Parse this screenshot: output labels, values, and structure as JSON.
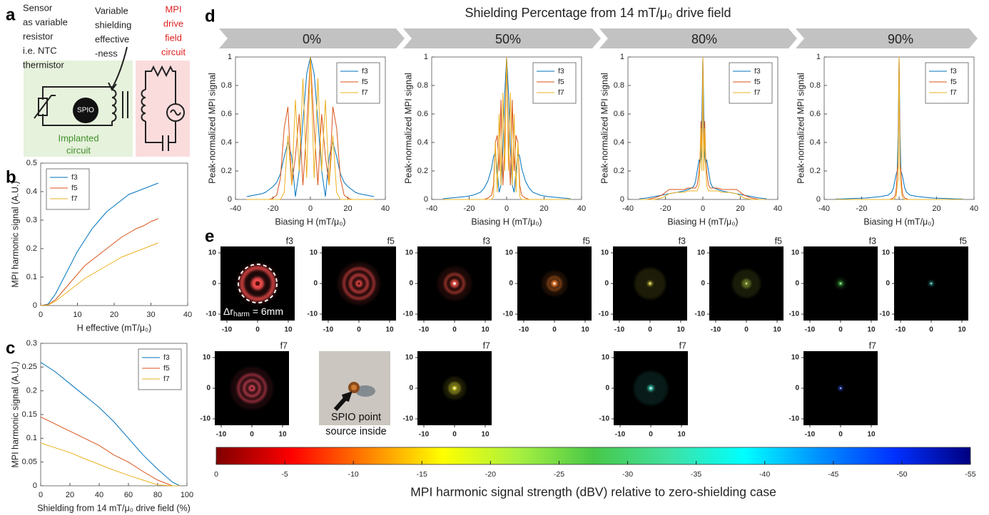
{
  "panel_labels": [
    "a",
    "b",
    "c",
    "d",
    "e"
  ],
  "diagram": {
    "sensor_label": [
      "Sensor",
      "as variable",
      "resistor",
      "i.e. NTC",
      "thermistor"
    ],
    "shielding_label": [
      "Variable",
      "shielding",
      "effective",
      "-ness"
    ],
    "drive_label": [
      "MPI",
      "drive",
      "field",
      "circuit"
    ],
    "spio": "SPIO",
    "implanted_label": [
      "Implanted",
      "circuit"
    ]
  },
  "figure_title": "Shielding Percentage from 14 mT/μ₀ drive field",
  "chart_data": [
    {
      "type": "line",
      "xlabel": "H effective (mT/μ₀)",
      "ylabel": "MPI harmonic signal (A.U.)",
      "x": [
        0,
        2,
        4,
        6,
        8,
        10,
        12,
        14,
        16,
        18,
        20,
        22,
        24,
        26,
        28,
        30,
        32
      ],
      "series": [
        {
          "name": "f3",
          "color": "#0072bd",
          "values": [
            0,
            0.005,
            0.04,
            0.09,
            0.14,
            0.19,
            0.23,
            0.27,
            0.3,
            0.33,
            0.35,
            0.37,
            0.39,
            0.4,
            0.41,
            0.42,
            0.43
          ]
        },
        {
          "name": "f5",
          "color": "#d95319",
          "values": [
            0,
            0.003,
            0.02,
            0.05,
            0.08,
            0.11,
            0.14,
            0.16,
            0.18,
            0.2,
            0.22,
            0.24,
            0.255,
            0.27,
            0.28,
            0.295,
            0.305
          ]
        },
        {
          "name": "f7",
          "color": "#edb120",
          "values": [
            0,
            0.002,
            0.015,
            0.035,
            0.055,
            0.075,
            0.095,
            0.11,
            0.125,
            0.14,
            0.155,
            0.17,
            0.18,
            0.19,
            0.2,
            0.21,
            0.22
          ]
        }
      ],
      "xlim": [
        0,
        40
      ],
      "ylim": [
        0,
        0.5
      ],
      "xticks": [
        0,
        10,
        20,
        30,
        40
      ],
      "yticks": [
        0,
        0.1,
        0.2,
        0.3,
        0.4,
        0.5
      ],
      "legend": "upper left"
    },
    {
      "type": "line",
      "xlabel": "Shielding from 14 mT/μ₀ drive field (%)",
      "ylabel": "MPI harmonic signal (A.U.)",
      "x": [
        0,
        10,
        20,
        30,
        40,
        50,
        60,
        70,
        80,
        90,
        95
      ],
      "series": [
        {
          "name": "f3",
          "color": "#0072bd",
          "values": [
            0.26,
            0.24,
            0.215,
            0.19,
            0.165,
            0.135,
            0.1,
            0.065,
            0.035,
            0.008,
            0
          ]
        },
        {
          "name": "f5",
          "color": "#d95319",
          "values": [
            0.145,
            0.13,
            0.115,
            0.1,
            0.085,
            0.065,
            0.05,
            0.03,
            0.012,
            0,
            0
          ]
        },
        {
          "name": "f7",
          "color": "#edb120",
          "values": [
            0.09,
            0.08,
            0.07,
            0.057,
            0.045,
            0.033,
            0.022,
            0.012,
            0.002,
            0,
            0
          ]
        }
      ],
      "xlim": [
        0,
        100
      ],
      "ylim": [
        0,
        0.3
      ],
      "xticks": [
        0,
        20,
        40,
        60,
        80,
        100
      ],
      "yticks": [
        0,
        0.05,
        0.1,
        0.15,
        0.2,
        0.25,
        0.3
      ],
      "legend": "upper right"
    },
    {
      "type": "line",
      "title": "0%",
      "xlabel": "Biasing H (mT/μ₀)",
      "ylabel": "Peak-normalized MPI signal",
      "x": [
        -34,
        -32,
        -30,
        -28,
        -26,
        -24,
        -22,
        -20,
        -18,
        -16,
        -14,
        -12,
        -10,
        -8,
        -6,
        -4,
        -2,
        0,
        2,
        4,
        6,
        8,
        10,
        12,
        14,
        16,
        18,
        20,
        22,
        24,
        26,
        28,
        30,
        32,
        34
      ],
      "series": [
        {
          "name": "f3",
          "color": "#0072bd",
          "values": [
            0.02,
            0.025,
            0.03,
            0.035,
            0.04,
            0.05,
            0.07,
            0.09,
            0.12,
            0.18,
            0.3,
            0.4,
            0.3,
            0.02,
            0.2,
            0.55,
            0.88,
            1,
            0.88,
            0.55,
            0.2,
            0.02,
            0.3,
            0.4,
            0.3,
            0.18,
            0.12,
            0.09,
            0.07,
            0.05,
            0.04,
            0.035,
            0.03,
            0.025,
            0.02
          ]
        },
        {
          "name": "f5",
          "color": "#d95319",
          "values": [
            0,
            0,
            0,
            0,
            0,
            0,
            0,
            0.01,
            0.03,
            0.15,
            0.5,
            0.65,
            0.1,
            0.3,
            0.6,
            0.1,
            0.5,
            1,
            0.5,
            0.1,
            0.6,
            0.3,
            0.1,
            0.65,
            0.5,
            0.15,
            0.03,
            0.01,
            0,
            0,
            0,
            0,
            0,
            0,
            0
          ]
        },
        {
          "name": "f7",
          "color": "#edb120",
          "values": [
            0,
            0,
            0,
            0,
            0,
            0,
            0,
            0,
            0,
            0,
            0.05,
            0.45,
            0.1,
            0.7,
            0.2,
            0.85,
            0.15,
            1,
            0.15,
            0.85,
            0.2,
            0.7,
            0.1,
            0.45,
            0.05,
            0,
            0,
            0,
            0,
            0,
            0,
            0,
            0,
            0,
            0
          ]
        }
      ],
      "xlim": [
        -40,
        40
      ],
      "ylim": [
        0,
        1
      ],
      "xticks": [
        -40,
        -20,
        0,
        20,
        40
      ],
      "yticks": [
        0,
        0.2,
        0.4,
        0.6,
        0.8,
        1
      ],
      "legend": "upper right"
    },
    {
      "type": "line",
      "title": "50%",
      "xlabel": "Biasing H (mT/μ₀)",
      "ylabel": "Peak-normalized MPI signal",
      "x": [
        -34,
        -30,
        -26,
        -22,
        -18,
        -14,
        -12,
        -10,
        -8,
        -7,
        -6,
        -5,
        -4,
        -3,
        -2,
        -1,
        0,
        1,
        2,
        3,
        4,
        5,
        6,
        7,
        8,
        10,
        12,
        14,
        18,
        22,
        26,
        30,
        34
      ],
      "series": [
        {
          "name": "f3",
          "color": "#0072bd",
          "values": [
            0.005,
            0.01,
            0.015,
            0.02,
            0.03,
            0.05,
            0.08,
            0.13,
            0.22,
            0.3,
            0.33,
            0.2,
            0.05,
            0.1,
            0.35,
            0.75,
            1,
            0.75,
            0.35,
            0.1,
            0.05,
            0.2,
            0.33,
            0.3,
            0.22,
            0.13,
            0.08,
            0.05,
            0.03,
            0.02,
            0.015,
            0.01,
            0.005
          ]
        },
        {
          "name": "f5",
          "color": "#d95319",
          "values": [
            0,
            0,
            0,
            0,
            0,
            0,
            0,
            0.01,
            0.03,
            0.1,
            0.4,
            0.45,
            0.2,
            0.7,
            0.1,
            0.4,
            1,
            0.4,
            0.1,
            0.7,
            0.2,
            0.45,
            0.4,
            0.1,
            0.03,
            0.01,
            0,
            0,
            0,
            0,
            0,
            0,
            0
          ]
        },
        {
          "name": "f7",
          "color": "#edb120",
          "values": [
            0,
            0,
            0,
            0,
            0,
            0,
            0,
            0,
            0,
            0.02,
            0.4,
            0.05,
            0.6,
            0.1,
            0.75,
            0.2,
            1,
            0.2,
            0.75,
            0.1,
            0.6,
            0.05,
            0.4,
            0.02,
            0,
            0,
            0,
            0,
            0,
            0,
            0,
            0,
            0
          ]
        }
      ],
      "xlim": [
        -40,
        40
      ],
      "ylim": [
        0,
        1
      ],
      "xticks": [
        -40,
        -20,
        0,
        20,
        40
      ],
      "yticks": [
        0,
        0.2,
        0.4,
        0.6,
        0.8,
        1
      ],
      "legend": "upper right"
    },
    {
      "type": "line",
      "title": "80%",
      "xlabel": "Biasing H (mT/μ₀)",
      "ylabel": "Peak-normalized MPI signal",
      "x": [
        -34,
        -30,
        -26,
        -22,
        -18,
        -14,
        -10,
        -8,
        -6,
        -5,
        -4,
        -3,
        -2,
        -1.5,
        -1,
        -0.5,
        0,
        0.5,
        1,
        1.5,
        2,
        3,
        4,
        5,
        6,
        8,
        10,
        14,
        18,
        22,
        26,
        30,
        34
      ],
      "series": [
        {
          "name": "f3",
          "color": "#0072bd",
          "values": [
            0.005,
            0.01,
            0.02,
            0.03,
            0.04,
            0.05,
            0.06,
            0.07,
            0.08,
            0.09,
            0.12,
            0.2,
            0.28,
            0.25,
            0.3,
            0.6,
            1,
            0.6,
            0.3,
            0.25,
            0.28,
            0.2,
            0.12,
            0.09,
            0.08,
            0.07,
            0.06,
            0.05,
            0.04,
            0.03,
            0.02,
            0.01,
            0.005
          ]
        },
        {
          "name": "f5",
          "color": "#d95319",
          "values": [
            0,
            0,
            0.01,
            0.03,
            0.07,
            0.07,
            0.07,
            0.08,
            0.08,
            0.08,
            0.08,
            0.1,
            0.2,
            0.3,
            0.55,
            0.3,
            1,
            0.3,
            0.55,
            0.3,
            0.2,
            0.1,
            0.08,
            0.08,
            0.08,
            0.08,
            0.07,
            0.07,
            0.07,
            0.03,
            0.01,
            0,
            0
          ]
        },
        {
          "name": "f7",
          "color": "#edb120",
          "values": [
            0,
            0,
            0,
            0.01,
            0.04,
            0.05,
            0.05,
            0.06,
            0.06,
            0.06,
            0.06,
            0.06,
            0.1,
            0.25,
            0.5,
            0.2,
            1,
            0.2,
            0.5,
            0.25,
            0.1,
            0.06,
            0.06,
            0.06,
            0.06,
            0.06,
            0.05,
            0.05,
            0.04,
            0.01,
            0,
            0,
            0
          ]
        }
      ],
      "xlim": [
        -40,
        40
      ],
      "ylim": [
        0,
        1
      ],
      "xticks": [
        -40,
        -20,
        0,
        20,
        40
      ],
      "yticks": [
        0,
        0.2,
        0.4,
        0.6,
        0.8,
        1
      ],
      "legend": "upper right"
    },
    {
      "type": "line",
      "title": "90%",
      "xlabel": "Biasing H (mT/μ₀)",
      "ylabel": "Peak-normalized MPI signal",
      "x": [
        -34,
        -30,
        -26,
        -22,
        -18,
        -14,
        -10,
        -8,
        -6,
        -5,
        -4,
        -3,
        -2,
        -1.5,
        -1,
        -0.5,
        0,
        0.5,
        1,
        1.5,
        2,
        3,
        4,
        5,
        6,
        8,
        10,
        14,
        18,
        22,
        26,
        30,
        34
      ],
      "series": [
        {
          "name": "f3",
          "color": "#0072bd",
          "values": [
            0.003,
            0.004,
            0.006,
            0.008,
            0.01,
            0.015,
            0.02,
            0.025,
            0.03,
            0.04,
            0.05,
            0.08,
            0.15,
            0.18,
            0.2,
            0.45,
            1,
            0.45,
            0.2,
            0.18,
            0.15,
            0.08,
            0.05,
            0.04,
            0.03,
            0.025,
            0.02,
            0.015,
            0.01,
            0.008,
            0.006,
            0.004,
            0.003
          ]
        },
        {
          "name": "f5",
          "color": "#d95319",
          "values": [
            0,
            0,
            0,
            0,
            0,
            0,
            0,
            0,
            0,
            0,
            0.005,
            0.01,
            0.03,
            0.08,
            0.2,
            0.25,
            1,
            0.25,
            0.2,
            0.08,
            0.03,
            0.01,
            0.005,
            0,
            0,
            0,
            0,
            0,
            0,
            0,
            0,
            0,
            0
          ]
        },
        {
          "name": "f7",
          "color": "#edb120",
          "values": [
            0,
            0,
            0,
            0,
            0,
            0,
            0,
            0,
            0,
            0,
            0,
            0,
            0.01,
            0.03,
            0.1,
            0.15,
            1,
            0.15,
            0.1,
            0.03,
            0.01,
            0,
            0,
            0,
            0,
            0,
            0,
            0,
            0,
            0,
            0,
            0,
            0
          ]
        }
      ],
      "xlim": [
        -40,
        40
      ],
      "ylim": [
        0,
        1
      ],
      "xticks": [
        -40,
        -20,
        0,
        20,
        40
      ],
      "yticks": [
        0,
        0.2,
        0.4,
        0.6,
        0.8,
        1
      ],
      "legend": "upper right"
    }
  ],
  "images": [
    {
      "label": "f3",
      "color": "#e84848",
      "xticks": [
        -10,
        0,
        10
      ],
      "yticks": [
        10,
        0,
        -10
      ]
    },
    {
      "label": "f5",
      "color": "#e84848",
      "xticks": [
        -10,
        0,
        10
      ],
      "yticks": [
        10,
        0,
        -10
      ]
    },
    {
      "label": "f3",
      "color": "#d84a3c",
      "xticks": [
        -10,
        0,
        10
      ],
      "yticks": [
        10,
        0,
        -10
      ]
    },
    {
      "label": "f5",
      "color": "#ec7a2a",
      "xticks": [
        -10,
        0,
        10
      ],
      "yticks": [
        10,
        0,
        -10
      ]
    },
    {
      "label": "f3",
      "color": "#e8e040",
      "xticks": [
        -10,
        0,
        10
      ],
      "yticks": [
        10,
        0,
        -10
      ]
    },
    {
      "label": "f5",
      "color": "#c0e048",
      "xticks": [
        -10,
        0,
        10
      ],
      "yticks": [
        10,
        0,
        -10
      ]
    },
    {
      "label": "f3",
      "color": "#50d050",
      "xticks": [
        -10,
        0,
        10
      ],
      "yticks": [
        10,
        0,
        -10
      ]
    },
    {
      "label": "f5",
      "color": "#40e0d0",
      "xticks": [
        -10,
        0,
        10
      ],
      "yticks": [
        10,
        0,
        -10
      ]
    },
    {
      "label": "f7",
      "color": "#d84658",
      "xticks": [
        -10,
        0,
        10
      ],
      "yticks": [
        10,
        0,
        -10
      ]
    },
    {
      "label": "f7",
      "color": "#e6e030",
      "xticks": [
        -10,
        0,
        10
      ],
      "yticks": [
        10,
        0,
        -10
      ]
    },
    {
      "label": "f7",
      "color": "#40d8c0",
      "xticks": [
        -10,
        0,
        10
      ],
      "yticks": [
        10,
        0,
        -10
      ]
    },
    {
      "label": "f7",
      "color": "#3050e8",
      "xticks": [
        -10,
        0,
        10
      ],
      "yticks": [
        10,
        0,
        -10
      ]
    }
  ],
  "image_annotation": {
    "main": "Δr",
    "sub": "harm",
    "rest": "= 6mm"
  },
  "photo_caption": [
    "SPIO point",
    "source inside"
  ],
  "colorbar": {
    "label": "MPI harmonic signal strength (dBV) relative to zero-shielding case",
    "xlim": [
      0,
      -55
    ],
    "xticks": [
      0,
      -5,
      -10,
      -15,
      -20,
      -25,
      -30,
      -35,
      -40,
      -45,
      -50,
      -55
    ],
    "colors": [
      "#800000",
      "#ff0000",
      "#ff8000",
      "#ffff00",
      "#a8f040",
      "#48c848",
      "#40e0a0",
      "#00ffff",
      "#0090ff",
      "#0030ff",
      "#000080"
    ]
  }
}
